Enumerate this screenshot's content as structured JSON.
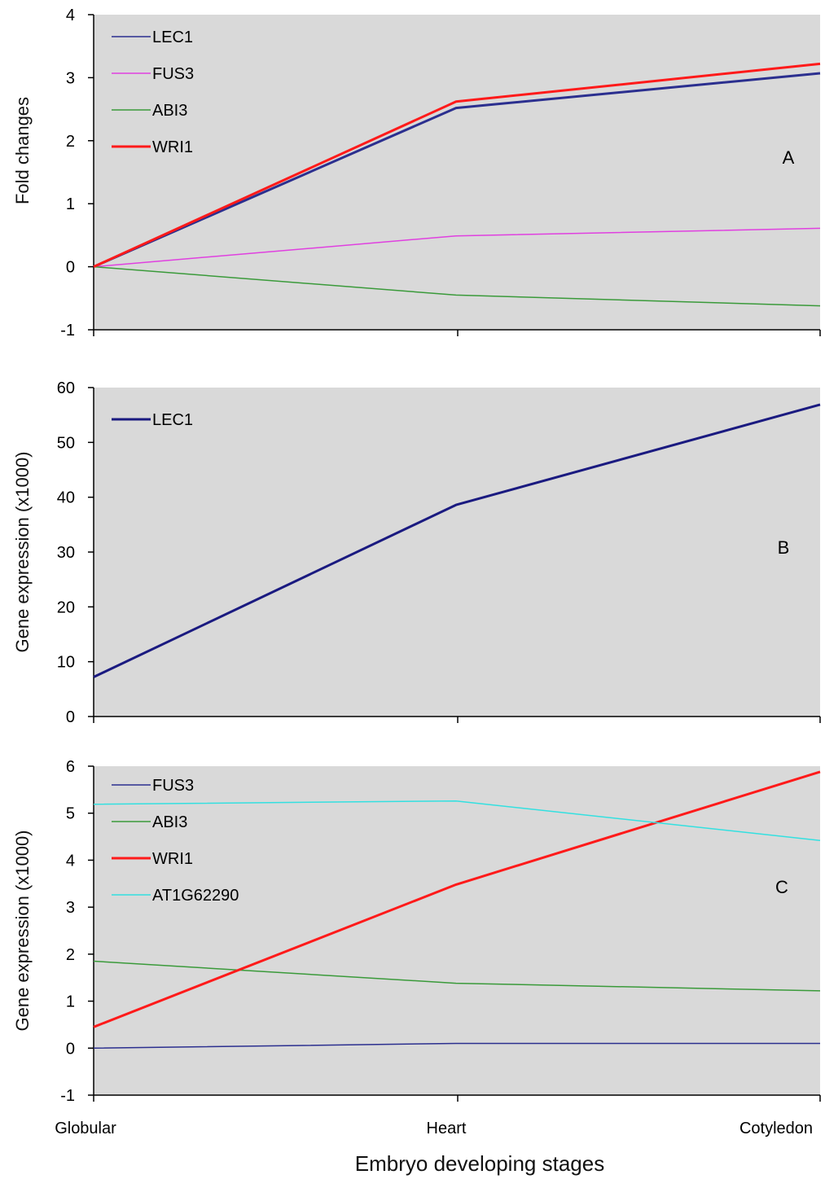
{
  "chart_data": [
    {
      "type": "line",
      "panel_letter": "A",
      "ylabel": "Fold changes",
      "ylim": [
        -1,
        4
      ],
      "yticks": [
        -1,
        0,
        1,
        2,
        3,
        4
      ],
      "grid": false,
      "legend_position": "top-left",
      "categories": [
        "Globular",
        "Heart",
        "Cotyledon"
      ],
      "series": [
        {
          "name": "LEC1",
          "color": "#2b2f8f",
          "width": "thin-legend-thick-line",
          "values": [
            0,
            2.52,
            3.07
          ]
        },
        {
          "name": "FUS3",
          "color": "#e040e0",
          "values": [
            0,
            0.49,
            0.61
          ]
        },
        {
          "name": "ABI3",
          "color": "#3a9a3a",
          "values": [
            0,
            -0.45,
            -0.62
          ]
        },
        {
          "name": "WRI1",
          "color": "#ff1a1a",
          "values": [
            0,
            2.62,
            3.22
          ]
        }
      ]
    },
    {
      "type": "line",
      "panel_letter": "B",
      "ylabel": "Gene expression (x1000)",
      "ylim": [
        0,
        60
      ],
      "yticks": [
        0,
        10,
        20,
        30,
        40,
        50,
        60
      ],
      "grid": false,
      "legend_position": "top-left",
      "categories": [
        "Globular",
        "Heart",
        "Cotyledon"
      ],
      "series": [
        {
          "name": "LEC1",
          "color": "#1a1a80",
          "values": [
            7.2,
            38.6,
            56.9
          ]
        }
      ]
    },
    {
      "type": "line",
      "panel_letter": "C",
      "ylabel": "Gene expression (x1000)",
      "ylim": [
        -1,
        6
      ],
      "yticks": [
        -1,
        0,
        1,
        2,
        3,
        4,
        5,
        6
      ],
      "grid": false,
      "legend_position": "top-left",
      "categories": [
        "Globular",
        "Heart",
        "Cotyledon"
      ],
      "series": [
        {
          "name": "FUS3",
          "color": "#2b2f8f",
          "values": [
            0,
            0.1,
            0.1
          ]
        },
        {
          "name": "ABI3",
          "color": "#3a9a3a",
          "values": [
            1.85,
            1.38,
            1.22
          ]
        },
        {
          "name": "WRI1",
          "color": "#ff1a1a",
          "values": [
            0.45,
            3.48,
            5.88
          ]
        },
        {
          "name": "AT1G62290",
          "color": "#33e0e0",
          "values": [
            5.19,
            5.26,
            4.42
          ]
        }
      ]
    }
  ],
  "x_axis": {
    "tick_labels": [
      "Globular",
      "Heart",
      "Cotyledon"
    ],
    "title": "Embryo developing stages"
  },
  "colors": {
    "plot_background": "#d9d9d9",
    "axis": "#000000"
  }
}
